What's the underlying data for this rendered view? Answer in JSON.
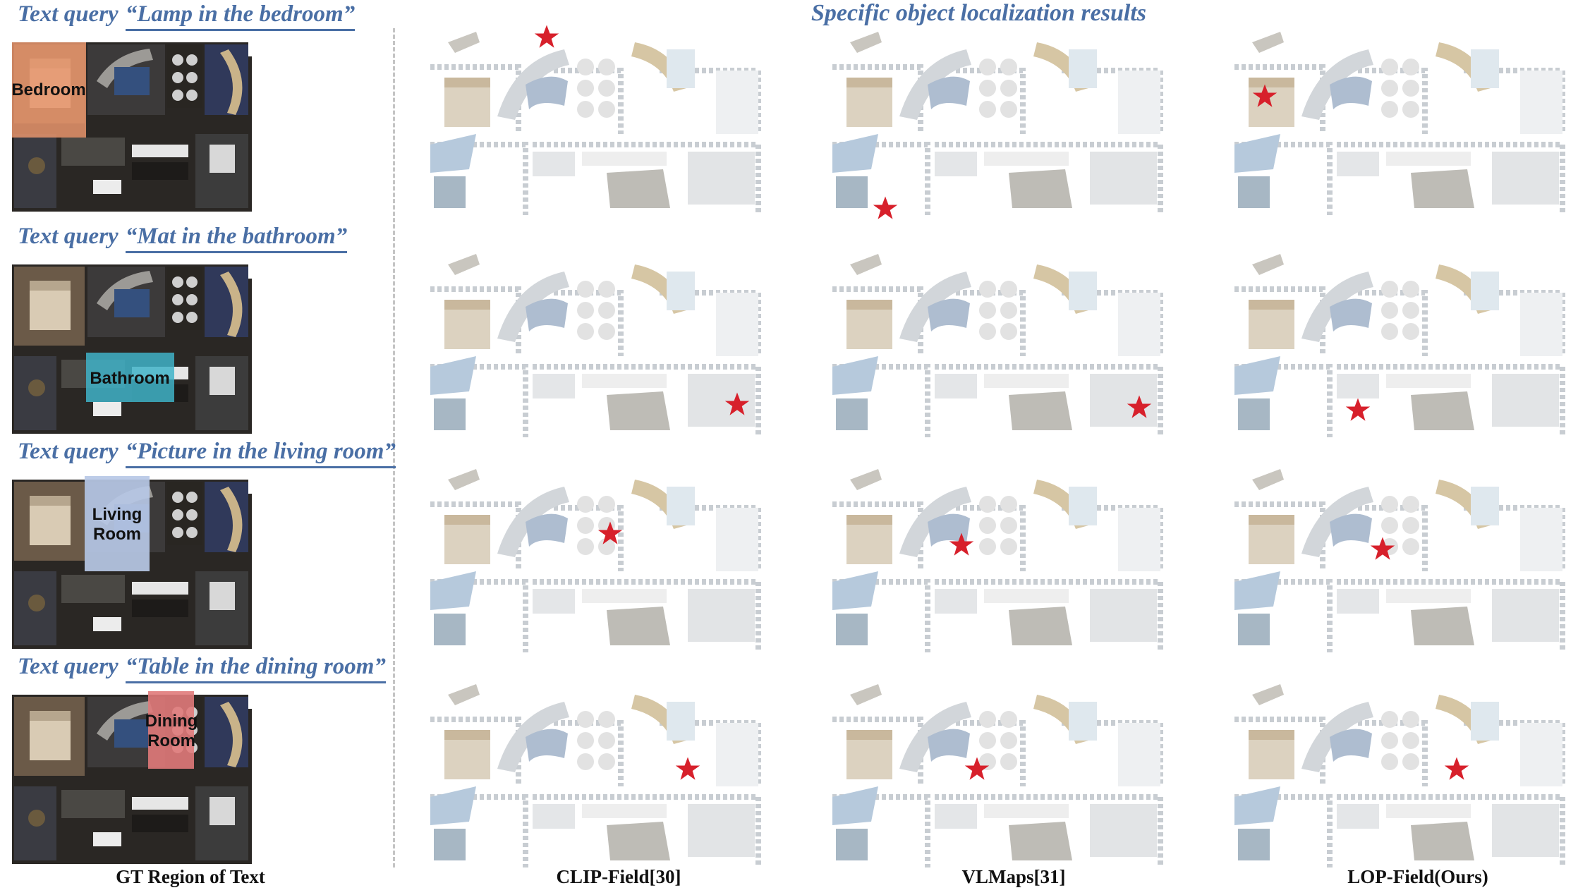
{
  "title": "Specific object localization results",
  "query_prefix": "Text query",
  "rows": [
    {
      "query": "“Lamp in the bedroom”",
      "region_label_lines": [
        "Bedroom"
      ],
      "region_color": "#e8956c"
    },
    {
      "query": "“Mat in the bathroom”",
      "region_label_lines": [
        "Bathroom"
      ],
      "region_color": "#3fb3c8"
    },
    {
      "query": "“Picture in the living room”",
      "region_label_lines": [
        "Living",
        "Room"
      ],
      "region_color": "#b7c8e6"
    },
    {
      "query": "“Table in the dining room”",
      "region_label_lines": [
        "Dining",
        "Room"
      ],
      "region_color": "#e07a7a"
    }
  ],
  "captions": [
    "GT Region of Text",
    "CLIP-Field[30]",
    "VLMaps[31]",
    "LOP-Field(Ours)"
  ],
  "icons": {
    "marker": "red-star-icon"
  },
  "colors": {
    "title": "#4a6fa5",
    "star": "#d7202b",
    "divider": "#c4c4c4"
  }
}
